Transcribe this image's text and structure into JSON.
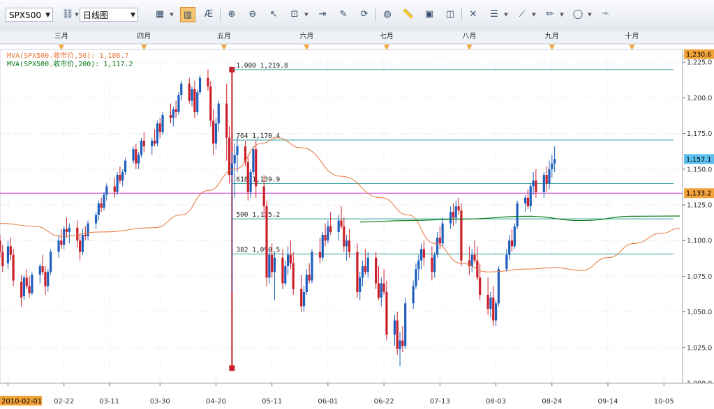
{
  "toolbar": {
    "symbol": "SPX500",
    "period": "日线图",
    "tools": [
      {
        "name": "bar-style-icon",
        "glyph": "▦",
        "drop": true
      },
      {
        "name": "candlestick-icon",
        "glyph": "▥",
        "drop": false,
        "active": true
      },
      {
        "name": "indicator-icon",
        "glyph": "Æ",
        "drop": false
      },
      {
        "name": "zoom-in-icon",
        "glyph": "⊕",
        "drop": false
      },
      {
        "name": "zoom-out-icon",
        "glyph": "⊖",
        "drop": false
      },
      {
        "name": "cursor-icon",
        "glyph": "↖",
        "drop": false
      },
      {
        "name": "zoom-area-icon",
        "glyph": "⊡",
        "drop": true
      },
      {
        "name": "fit-icon",
        "glyph": "⇥",
        "drop": false
      },
      {
        "name": "edit-chart-icon",
        "glyph": "✎",
        "drop": false
      },
      {
        "name": "refresh-icon",
        "glyph": "⟳",
        "drop": false
      },
      {
        "name": "globe-icon",
        "glyph": "◍",
        "drop": false
      },
      {
        "name": "ruler-icon",
        "glyph": "📏",
        "drop": false
      },
      {
        "name": "picture-icon",
        "glyph": "▣",
        "drop": false
      },
      {
        "name": "screenshot-icon",
        "glyph": "◫",
        "drop": false
      },
      {
        "name": "crosshair-icon",
        "glyph": "✕",
        "drop": false
      },
      {
        "name": "rows-icon",
        "glyph": "☰",
        "drop": true
      },
      {
        "name": "draw-line-icon",
        "glyph": "⟋",
        "drop": true
      },
      {
        "name": "pencil-icon",
        "glyph": "✏",
        "drop": true
      },
      {
        "name": "ellipse-icon",
        "glyph": "◯",
        "drop": true
      },
      {
        "name": "text-label-icon",
        "glyph": "ᴬᴮᶜ",
        "drop": false
      }
    ]
  },
  "chart_data": {
    "type": "candlestick",
    "symbol": "SPX500",
    "ylim": [
      1000,
      1230
    ],
    "y_ticks": [
      "1,225.0",
      "1,200.0",
      "1,175.0",
      "1,150.0",
      "1,125.0",
      "1,100.0",
      "1,075.0",
      "1,050.0",
      "1,025.0",
      "1,000.0"
    ],
    "y_tick_values": [
      1225,
      1200,
      1175,
      1150,
      1125,
      1100,
      1075,
      1050,
      1025,
      1000
    ],
    "month_labels": [
      {
        "label": "三月",
        "day": 20
      },
      {
        "label": "四月",
        "day": 51
      },
      {
        "label": "五月",
        "day": 81
      },
      {
        "label": "六月",
        "day": 112
      },
      {
        "label": "七月",
        "day": 142
      },
      {
        "label": "八月",
        "day": 173
      },
      {
        "label": "九月",
        "day": 204
      },
      {
        "label": "十月",
        "day": 234
      }
    ],
    "date_labels": [
      {
        "label": "2010-02-01",
        "day": 0,
        "highlight": true
      },
      {
        "label": "02-22",
        "day": 21
      },
      {
        "label": "03-11",
        "day": 38
      },
      {
        "label": "03-30",
        "day": 57
      },
      {
        "label": "04-20",
        "day": 78
      },
      {
        "label": "05-11",
        "day": 99
      },
      {
        "label": "06-01",
        "day": 120
      },
      {
        "label": "06-22",
        "day": 141
      },
      {
        "label": "07-13",
        "day": 162
      },
      {
        "label": "08-03",
        "day": 183
      },
      {
        "label": "08-24",
        "day": 204
      },
      {
        "label": "09-14",
        "day": 225
      },
      {
        "label": "10-05",
        "day": 246
      }
    ],
    "day_range": [
      -3,
      253
    ],
    "price_badges": [
      {
        "label": "1,230.6",
        "value": 1230.6,
        "color": "#f2a33a"
      },
      {
        "label": "1,157.1",
        "value": 1157.1,
        "color": "#5bc0f0"
      },
      {
        "label": "1,133.2",
        "value": 1133.2,
        "color": "#f2a33a"
      }
    ],
    "legend": [
      {
        "text": "MVA(SPX500.收市价,50): 1,108.7",
        "color": "#e8743b"
      },
      {
        "text": "MVA(SPX500.收市价,200): 1,117.2",
        "color": "#0a7a1a"
      }
    ],
    "fib_levels": [
      {
        "label": "1.000 1,219.8",
        "value": 1219.8
      },
      {
        "label": "764 1,170.4",
        "value": 1170.4
      },
      {
        "label": "618 1,139.9",
        "value": 1139.9
      },
      {
        "label": "500 1,115.2",
        "value": 1115.2
      },
      {
        "label": "382 1,090.5",
        "value": 1090.5
      }
    ],
    "fib_anchor": {
      "day": 84,
      "high": 1219.8,
      "low": 1010.6
    },
    "horizontal_line": {
      "value": 1133.2,
      "color": "#cc33cc"
    },
    "ma50_anchors": [
      [
        -3,
        1112
      ],
      [
        10,
        1110
      ],
      [
        20,
        1103
      ],
      [
        35,
        1106
      ],
      [
        55,
        1109
      ],
      [
        65,
        1118
      ],
      [
        75,
        1135
      ],
      [
        85,
        1150
      ],
      [
        95,
        1168
      ],
      [
        101,
        1172
      ],
      [
        110,
        1165
      ],
      [
        125,
        1145
      ],
      [
        140,
        1130
      ],
      [
        150,
        1118
      ],
      [
        160,
        1098
      ],
      [
        170,
        1084
      ],
      [
        180,
        1078
      ],
      [
        195,
        1080
      ],
      [
        205,
        1081
      ],
      [
        215,
        1079
      ],
      [
        225,
        1088
      ],
      [
        235,
        1098
      ],
      [
        245,
        1105
      ],
      [
        252,
        1108.7
      ]
    ],
    "ma200_anchors": [
      [
        132,
        1113
      ],
      [
        150,
        1114
      ],
      [
        170,
        1115
      ],
      [
        195,
        1117
      ],
      [
        215,
        1114
      ],
      [
        235,
        1117
      ],
      [
        252,
        1117.2
      ]
    ],
    "candles": [
      [
        -3,
        1100,
        1104,
        1088,
        1092
      ],
      [
        -2,
        1092,
        1097,
        1078,
        1082
      ],
      [
        0,
        1084,
        1100,
        1080,
        1096
      ],
      [
        1,
        1096,
        1102,
        1086,
        1090
      ],
      [
        2,
        1090,
        1094,
        1068,
        1072
      ],
      [
        5,
        1071,
        1076,
        1054,
        1060
      ],
      [
        6,
        1061,
        1076,
        1058,
        1074
      ],
      [
        7,
        1074,
        1080,
        1066,
        1068
      ],
      [
        8,
        1068,
        1075,
        1060,
        1063
      ],
      [
        9,
        1063,
        1078,
        1062,
        1076
      ],
      [
        12,
        1076,
        1084,
        1070,
        1082
      ],
      [
        13,
        1082,
        1090,
        1076,
        1078
      ],
      [
        14,
        1078,
        1082,
        1062,
        1068
      ],
      [
        15,
        1068,
        1080,
        1064,
        1078
      ],
      [
        16,
        1078,
        1094,
        1076,
        1092
      ],
      [
        19,
        1092,
        1104,
        1088,
        1100
      ],
      [
        20,
        1100,
        1108,
        1094,
        1097
      ],
      [
        21,
        1097,
        1110,
        1094,
        1108
      ],
      [
        22,
        1108,
        1116,
        1102,
        1106
      ],
      [
        23,
        1106,
        1112,
        1098,
        1109
      ],
      [
        26,
        1109,
        1114,
        1095,
        1100
      ],
      [
        27,
        1100,
        1104,
        1086,
        1092
      ],
      [
        28,
        1092,
        1108,
        1090,
        1104
      ],
      [
        29,
        1104,
        1110,
        1100,
        1103
      ],
      [
        30,
        1103,
        1114,
        1100,
        1112
      ],
      [
        33,
        1112,
        1120,
        1108,
        1118
      ],
      [
        34,
        1118,
        1128,
        1114,
        1126
      ],
      [
        35,
        1126,
        1130,
        1120,
        1123
      ],
      [
        36,
        1123,
        1134,
        1121,
        1132
      ],
      [
        37,
        1132,
        1140,
        1128,
        1138
      ],
      [
        40,
        1138,
        1144,
        1130,
        1134
      ],
      [
        41,
        1134,
        1148,
        1132,
        1146
      ],
      [
        42,
        1146,
        1152,
        1140,
        1142
      ],
      [
        43,
        1142,
        1150,
        1138,
        1148
      ],
      [
        44,
        1148,
        1158,
        1146,
        1156
      ],
      [
        47,
        1156,
        1166,
        1154,
        1164
      ],
      [
        48,
        1164,
        1168,
        1150,
        1154
      ],
      [
        49,
        1154,
        1162,
        1150,
        1160
      ],
      [
        50,
        1160,
        1172,
        1158,
        1170
      ],
      [
        51,
        1170,
        1176,
        1162,
        1166
      ],
      [
        54,
        1166,
        1172,
        1160,
        1170
      ],
      [
        55,
        1170,
        1178,
        1166,
        1168
      ],
      [
        56,
        1168,
        1184,
        1166,
        1182
      ],
      [
        57,
        1182,
        1186,
        1172,
        1176
      ],
      [
        58,
        1176,
        1190,
        1174,
        1188
      ],
      [
        61,
        1188,
        1196,
        1182,
        1186
      ],
      [
        62,
        1186,
        1194,
        1180,
        1192
      ],
      [
        63,
        1192,
        1198,
        1186,
        1190
      ],
      [
        64,
        1190,
        1204,
        1188,
        1202
      ],
      [
        65,
        1202,
        1212,
        1198,
        1210
      ],
      [
        68,
        1210,
        1214,
        1196,
        1198
      ],
      [
        69,
        1198,
        1208,
        1194,
        1206
      ],
      [
        70,
        1206,
        1212,
        1186,
        1190
      ],
      [
        71,
        1190,
        1206,
        1188,
        1204
      ],
      [
        72,
        1204,
        1216,
        1202,
        1214
      ],
      [
        75,
        1214,
        1220,
        1205,
        1208
      ],
      [
        76,
        1208,
        1212,
        1180,
        1184
      ],
      [
        77,
        1184,
        1192,
        1160,
        1168
      ],
      [
        78,
        1168,
        1186,
        1164,
        1182
      ],
      [
        79,
        1182,
        1198,
        1176,
        1196
      ],
      [
        82,
        1196,
        1210,
        1156,
        1172
      ],
      [
        83,
        1172,
        1180,
        1140,
        1146
      ],
      [
        84,
        1146,
        1162,
        1064,
        1154
      ],
      [
        85,
        1154,
        1168,
        1130,
        1160
      ],
      [
        86,
        1160,
        1172,
        1148,
        1166
      ],
      [
        89,
        1166,
        1170,
        1152,
        1155
      ],
      [
        90,
        1155,
        1160,
        1128,
        1134
      ],
      [
        91,
        1134,
        1150,
        1130,
        1148
      ],
      [
        92,
        1148,
        1166,
        1146,
        1164
      ],
      [
        93,
        1164,
        1170,
        1130,
        1138
      ],
      [
        96,
        1138,
        1146,
        1116,
        1124
      ],
      [
        97,
        1124,
        1128,
        1068,
        1074
      ],
      [
        98,
        1074,
        1094,
        1070,
        1090
      ],
      [
        99,
        1090,
        1098,
        1074,
        1078
      ],
      [
        100,
        1078,
        1092,
        1058,
        1088
      ],
      [
        103,
        1088,
        1094,
        1066,
        1070
      ],
      [
        104,
        1070,
        1086,
        1068,
        1082
      ],
      [
        105,
        1082,
        1096,
        1076,
        1090
      ],
      [
        106,
        1090,
        1100,
        1080,
        1084
      ],
      [
        107,
        1084,
        1092,
        1062,
        1066
      ],
      [
        110,
        1066,
        1076,
        1050,
        1054
      ],
      [
        111,
        1054,
        1068,
        1050,
        1064
      ],
      [
        112,
        1064,
        1080,
        1062,
        1076
      ],
      [
        113,
        1076,
        1084,
        1070,
        1072
      ],
      [
        114,
        1072,
        1094,
        1070,
        1092
      ],
      [
        117,
        1092,
        1102,
        1084,
        1088
      ],
      [
        118,
        1088,
        1106,
        1086,
        1104
      ],
      [
        119,
        1104,
        1112,
        1096,
        1100
      ],
      [
        120,
        1100,
        1114,
        1098,
        1110
      ],
      [
        121,
        1110,
        1120,
        1104,
        1106
      ],
      [
        124,
        1106,
        1118,
        1100,
        1114
      ],
      [
        125,
        1114,
        1124,
        1108,
        1110
      ],
      [
        126,
        1110,
        1116,
        1092,
        1096
      ],
      [
        127,
        1096,
        1104,
        1086,
        1100
      ],
      [
        128,
        1100,
        1108,
        1088,
        1092
      ],
      [
        131,
        1092,
        1098,
        1060,
        1064
      ],
      [
        132,
        1064,
        1078,
        1058,
        1074
      ],
      [
        133,
        1074,
        1086,
        1068,
        1082
      ],
      [
        134,
        1082,
        1094,
        1076,
        1078
      ],
      [
        135,
        1078,
        1092,
        1074,
        1088
      ],
      [
        138,
        1088,
        1092,
        1066,
        1070
      ],
      [
        139,
        1070,
        1082,
        1058,
        1060
      ],
      [
        140,
        1060,
        1074,
        1054,
        1070
      ],
      [
        141,
        1070,
        1080,
        1062,
        1064
      ],
      [
        142,
        1064,
        1072,
        1030,
        1034
      ],
      [
        145,
        1034,
        1048,
        1026,
        1044
      ],
      [
        146,
        1044,
        1050,
        1020,
        1024
      ],
      [
        147,
        1024,
        1036,
        1012,
        1030
      ],
      [
        148,
        1030,
        1040,
        1022,
        1026
      ],
      [
        149,
        1026,
        1060,
        1024,
        1056
      ],
      [
        152,
        1056,
        1072,
        1052,
        1068
      ],
      [
        153,
        1068,
        1084,
        1066,
        1080
      ],
      [
        154,
        1080,
        1090,
        1072,
        1086
      ],
      [
        155,
        1086,
        1098,
        1080,
        1094
      ],
      [
        156,
        1094,
        1100,
        1082,
        1088
      ],
      [
        159,
        1088,
        1096,
        1072,
        1078
      ],
      [
        160,
        1078,
        1092,
        1074,
        1090
      ],
      [
        161,
        1090,
        1106,
        1088,
        1102
      ],
      [
        162,
        1102,
        1110,
        1094,
        1098
      ],
      [
        163,
        1098,
        1116,
        1096,
        1112
      ],
      [
        166,
        1112,
        1124,
        1108,
        1120
      ],
      [
        167,
        1120,
        1126,
        1110,
        1116
      ],
      [
        168,
        1116,
        1128,
        1112,
        1124
      ],
      [
        169,
        1124,
        1130,
        1118,
        1121
      ],
      [
        170,
        1121,
        1126,
        1082,
        1086
      ],
      [
        173,
        1086,
        1096,
        1076,
        1082
      ],
      [
        174,
        1082,
        1094,
        1078,
        1090
      ],
      [
        175,
        1090,
        1100,
        1084,
        1086
      ],
      [
        176,
        1086,
        1096,
        1072,
        1074
      ],
      [
        177,
        1074,
        1084,
        1058,
        1062
      ],
      [
        180,
        1062,
        1074,
        1048,
        1052
      ],
      [
        181,
        1052,
        1064,
        1046,
        1060
      ],
      [
        182,
        1060,
        1068,
        1040,
        1044
      ],
      [
        183,
        1044,
        1058,
        1040,
        1056
      ],
      [
        184,
        1056,
        1082,
        1054,
        1080
      ],
      [
        187,
        1080,
        1094,
        1078,
        1090
      ],
      [
        188,
        1090,
        1104,
        1086,
        1100
      ],
      [
        189,
        1100,
        1108,
        1092,
        1096
      ],
      [
        190,
        1096,
        1112,
        1094,
        1110
      ],
      [
        191,
        1110,
        1128,
        1108,
        1126
      ],
      [
        194,
        1126,
        1132,
        1120,
        1130
      ],
      [
        195,
        1130,
        1136,
        1122,
        1124
      ],
      [
        196,
        1124,
        1140,
        1120,
        1138
      ],
      [
        197,
        1138,
        1148,
        1132,
        1142
      ],
      [
        198,
        1142,
        1150,
        1130,
        1134
      ],
      [
        201,
        1134,
        1148,
        1130,
        1146
      ],
      [
        202,
        1146,
        1152,
        1134,
        1140
      ],
      [
        203,
        1140,
        1156,
        1136,
        1150
      ],
      [
        204,
        1150,
        1160,
        1144,
        1154
      ],
      [
        205,
        1154,
        1166,
        1148,
        1157.1
      ]
    ]
  }
}
